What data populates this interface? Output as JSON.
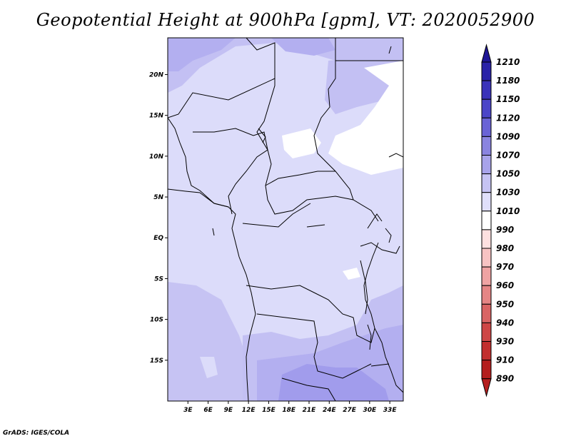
{
  "title": "Geopotential Height at 900hPa [gpm], VT: 2020052900",
  "credit": "GrADS: IGES/COLA",
  "map": {
    "variable": "Geopotential Height",
    "level_hpa": 900,
    "units": "gpm",
    "valid_time": "2020052900",
    "lon_ticks": [
      "3E",
      "6E",
      "9E",
      "12E",
      "15E",
      "18E",
      "21E",
      "24E",
      "27E",
      "30E",
      "33E"
    ],
    "lat_ticks": [
      "20N",
      "15N",
      "10N",
      "5N",
      "EQ",
      "5S",
      "10S",
      "15S"
    ]
  },
  "chart_data": {
    "type": "heatmap",
    "title": "Geopotential Height at 900hPa [gpm], VT: 2020052900",
    "lon_range_deg": [
      0,
      35
    ],
    "lat_range_deg": [
      -20,
      24.5
    ],
    "colorbar": {
      "levels": [
        1210,
        1180,
        1150,
        1120,
        1090,
        1070,
        1050,
        1030,
        1010,
        990,
        980,
        970,
        960,
        950,
        940,
        930,
        910,
        890
      ],
      "colors": [
        "#1f1696",
        "#2a22a8",
        "#3a32ba",
        "#4b45c8",
        "#6a63d6",
        "#8a84e0",
        "#a8a3ea",
        "#c6c3f3",
        "#e0dffa",
        "#ffffff",
        "#fde0e0",
        "#f7c3c3",
        "#efa3a3",
        "#e58585",
        "#d96464",
        "#ce4646",
        "#c22e2e",
        "#b41e1e"
      ]
    }
  }
}
